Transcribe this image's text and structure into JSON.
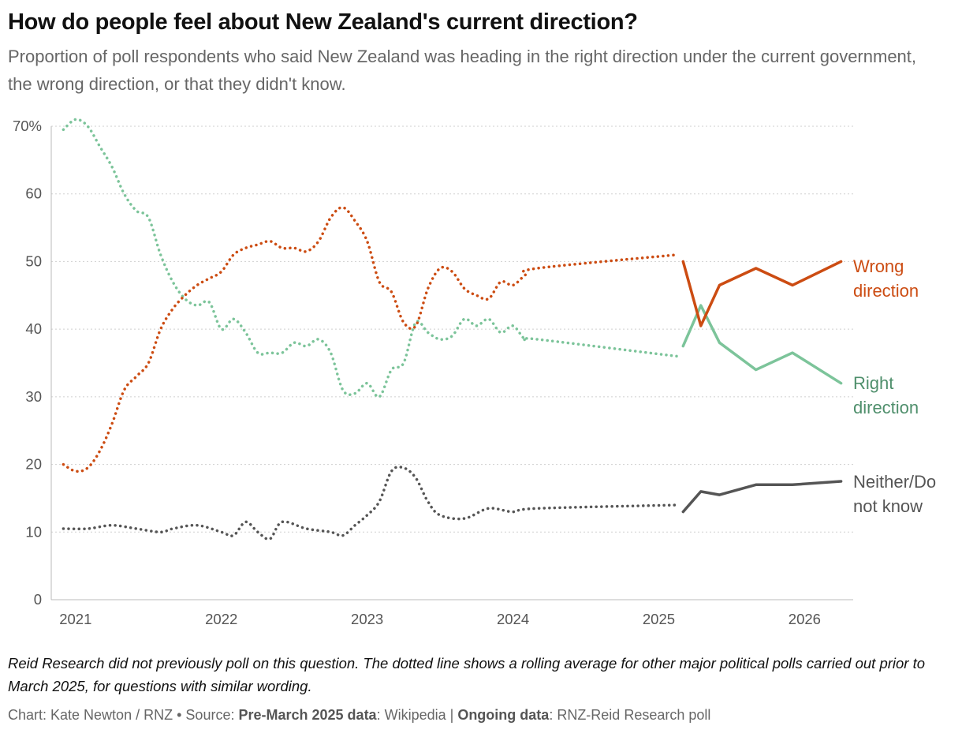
{
  "title": "How do people feel about New Zealand's current direction?",
  "subtitle": "Proportion of poll respondents who said New Zealand was heading in the right direction under the current government, the wrong direction, or that they didn't know.",
  "note": "Reid Research did not previously poll on this question. The dotted line shows a rolling average for other major political polls carried out prior to March 2025, for questions with similar wording.",
  "credit": {
    "author": "Chart: Kate Newton / RNZ",
    "bullet": "•",
    "source_prefix": "Source:",
    "pre_label": "Pre-March 2025 data",
    "pre_value": ": Wikipedia |",
    "ongoing_label": "Ongoing data",
    "ongoing_value": ": RNZ-Reid Research poll"
  },
  "chart_data": {
    "type": "line",
    "title": "How do people feel about New Zealand's current direction?",
    "xlabel": "",
    "ylabel": "",
    "x_ticks": [
      "2021",
      "2022",
      "2023",
      "2024",
      "2025",
      "2026"
    ],
    "y_ticks": [
      "0",
      "10",
      "20",
      "30",
      "40",
      "50",
      "60",
      "70%"
    ],
    "ylim": [
      0,
      70
    ],
    "xlim": [
      "2020-11",
      "2026-05"
    ],
    "grid": "horizontal dotted",
    "legend": "inline labels at right",
    "colors": {
      "wrong": "#cc4c12",
      "right": "#7cc49a",
      "right_label": "#4f8f6c",
      "neither": "#555555"
    },
    "series": [
      {
        "name": "Wrong direction",
        "key": "wrong",
        "rolling_average": [
          [
            "2020-12-01",
            20
          ],
          [
            "2021-01-01",
            19
          ],
          [
            "2021-02-01",
            19.5
          ],
          [
            "2021-03-01",
            22
          ],
          [
            "2021-04-01",
            26
          ],
          [
            "2021-05-01",
            31
          ],
          [
            "2021-06-01",
            33
          ],
          [
            "2021-07-01",
            35
          ],
          [
            "2021-08-01",
            40
          ],
          [
            "2021-09-01",
            43
          ],
          [
            "2021-10-01",
            45
          ],
          [
            "2021-11-01",
            46.5
          ],
          [
            "2021-12-01",
            47.5
          ],
          [
            "2022-01-01",
            48.5
          ],
          [
            "2022-02-01",
            51
          ],
          [
            "2022-03-01",
            52
          ],
          [
            "2022-04-01",
            52.5
          ],
          [
            "2022-05-01",
            53
          ],
          [
            "2022-06-01",
            52
          ],
          [
            "2022-07-01",
            52
          ],
          [
            "2022-08-01",
            51.5
          ],
          [
            "2022-09-01",
            53
          ],
          [
            "2022-10-01",
            56.5
          ],
          [
            "2022-11-01",
            58
          ],
          [
            "2022-12-01",
            56
          ],
          [
            "2023-01-01",
            53
          ],
          [
            "2023-02-01",
            47
          ],
          [
            "2023-03-01",
            45.5
          ],
          [
            "2023-04-01",
            41
          ],
          [
            "2023-05-01",
            40.5
          ],
          [
            "2023-06-01",
            46
          ],
          [
            "2023-07-01",
            49
          ],
          [
            "2023-08-01",
            48.5
          ],
          [
            "2023-09-01",
            46
          ],
          [
            "2023-10-01",
            45
          ],
          [
            "2023-11-01",
            44.5
          ],
          [
            "2023-12-01",
            47
          ],
          [
            "2024-01-01",
            46.5
          ],
          [
            "2024-02-01",
            48
          ],
          [
            "2024-03-01",
            49
          ],
          [
            "2025-02-15",
            51
          ]
        ],
        "poll": [
          [
            "2025-03-01",
            50
          ],
          [
            "2025-04-15",
            40.5
          ],
          [
            "2025-06-01",
            46.5
          ],
          [
            "2025-09-01",
            49
          ],
          [
            "2025-12-01",
            46.5
          ],
          [
            "2026-04-01",
            50
          ]
        ]
      },
      {
        "name": "Right direction",
        "key": "right",
        "rolling_average": [
          [
            "2020-12-01",
            69.5
          ],
          [
            "2021-01-01",
            71
          ],
          [
            "2021-02-01",
            70
          ],
          [
            "2021-03-01",
            67
          ],
          [
            "2021-04-01",
            64
          ],
          [
            "2021-05-01",
            60
          ],
          [
            "2021-06-01",
            57.5
          ],
          [
            "2021-07-01",
            56.5
          ],
          [
            "2021-08-01",
            51
          ],
          [
            "2021-09-01",
            47
          ],
          [
            "2021-10-01",
            44.5
          ],
          [
            "2021-11-01",
            43.5
          ],
          [
            "2021-12-01",
            44
          ],
          [
            "2022-01-01",
            40
          ],
          [
            "2022-02-01",
            41.5
          ],
          [
            "2022-03-01",
            39.5
          ],
          [
            "2022-04-01",
            36.5
          ],
          [
            "2022-05-01",
            36.5
          ],
          [
            "2022-06-01",
            36.5
          ],
          [
            "2022-07-01",
            38
          ],
          [
            "2022-08-01",
            37.5
          ],
          [
            "2022-09-01",
            38.5
          ],
          [
            "2022-10-01",
            36.5
          ],
          [
            "2022-11-01",
            31
          ],
          [
            "2022-12-01",
            30.5
          ],
          [
            "2023-01-01",
            32
          ],
          [
            "2023-02-01",
            30
          ],
          [
            "2023-03-01",
            34
          ],
          [
            "2023-04-01",
            35
          ],
          [
            "2023-05-01",
            41
          ],
          [
            "2023-06-01",
            39.5
          ],
          [
            "2023-07-01",
            38.5
          ],
          [
            "2023-08-01",
            39
          ],
          [
            "2023-09-01",
            41.5
          ],
          [
            "2023-10-01",
            40.5
          ],
          [
            "2023-11-01",
            41.5
          ],
          [
            "2023-12-01",
            39.5
          ],
          [
            "2024-01-01",
            40.5
          ],
          [
            "2024-02-01",
            38.5
          ],
          [
            "2024-03-01",
            38.5
          ],
          [
            "2025-02-15",
            36
          ]
        ],
        "poll": [
          [
            "2025-03-01",
            37.5
          ],
          [
            "2025-04-15",
            43.5
          ],
          [
            "2025-06-01",
            38
          ],
          [
            "2025-09-01",
            34
          ],
          [
            "2025-12-01",
            36.5
          ],
          [
            "2026-04-01",
            32
          ]
        ]
      },
      {
        "name": "Neither/Do not know",
        "key": "neither",
        "rolling_average": [
          [
            "2020-12-01",
            10.5
          ],
          [
            "2021-02-01",
            10.5
          ],
          [
            "2021-04-01",
            11
          ],
          [
            "2021-06-01",
            10.5
          ],
          [
            "2021-08-01",
            10
          ],
          [
            "2021-09-01",
            10.5
          ],
          [
            "2021-11-01",
            11
          ],
          [
            "2022-01-01",
            10
          ],
          [
            "2022-02-01",
            9.5
          ],
          [
            "2022-03-01",
            11.5
          ],
          [
            "2022-04-01",
            10
          ],
          [
            "2022-05-01",
            9
          ],
          [
            "2022-06-01",
            11.5
          ],
          [
            "2022-08-01",
            10.5
          ],
          [
            "2022-10-01",
            10
          ],
          [
            "2022-11-01",
            9.5
          ],
          [
            "2022-12-01",
            11
          ],
          [
            "2023-01-01",
            12.5
          ],
          [
            "2023-02-01",
            14.5
          ],
          [
            "2023-03-01",
            19
          ],
          [
            "2023-04-01",
            19.5
          ],
          [
            "2023-05-01",
            18
          ],
          [
            "2023-06-01",
            14.5
          ],
          [
            "2023-07-01",
            12.5
          ],
          [
            "2023-09-01",
            12
          ],
          [
            "2023-11-01",
            13.5
          ],
          [
            "2024-01-01",
            13
          ],
          [
            "2024-03-01",
            13.5
          ],
          [
            "2025-02-15",
            14
          ]
        ],
        "poll": [
          [
            "2025-03-01",
            13
          ],
          [
            "2025-04-15",
            16
          ],
          [
            "2025-06-01",
            15.5
          ],
          [
            "2025-09-01",
            17
          ],
          [
            "2025-12-01",
            17
          ],
          [
            "2026-04-01",
            17.5
          ]
        ]
      }
    ],
    "end_labels": {
      "wrong": [
        "Wrong",
        "direction"
      ],
      "right": [
        "Right",
        "direction"
      ],
      "neither": [
        "Neither/Do",
        "not know"
      ]
    }
  }
}
